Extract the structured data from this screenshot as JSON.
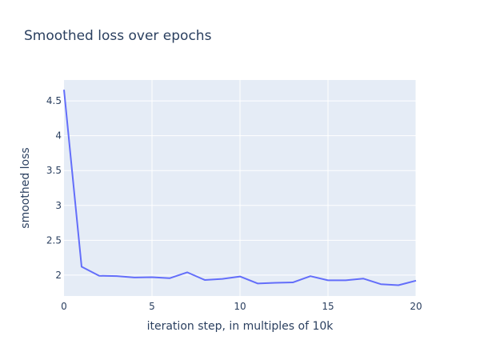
{
  "chart_data": {
    "type": "line",
    "title": "Smoothed loss over epochs",
    "xlabel": "iteration step, in multiples of 10k",
    "ylabel": "smoothed loss",
    "xlim": [
      0,
      20
    ],
    "ylim": [
      1.7,
      4.8
    ],
    "xticks": [
      0,
      5,
      10,
      15,
      20
    ],
    "yticks": [
      2,
      2.5,
      3,
      3.5,
      4,
      4.5
    ],
    "ytick_labels": [
      "2",
      "2.5",
      "3",
      "3.5",
      "4",
      "4.5"
    ],
    "grid": true,
    "series": [
      {
        "x": [
          0,
          1,
          2,
          3,
          4,
          5,
          6,
          7,
          8,
          9,
          10,
          11,
          12,
          13,
          14,
          15,
          16,
          17,
          18,
          19,
          20
        ],
        "values": [
          4.66,
          2.12,
          1.99,
          1.985,
          1.965,
          1.97,
          1.955,
          2.04,
          1.93,
          1.945,
          1.98,
          1.88,
          1.89,
          1.895,
          1.985,
          1.925,
          1.925,
          1.95,
          1.87,
          1.855,
          1.92
        ]
      }
    ]
  },
  "colors": {
    "plot_bg": "#e5ecf6",
    "grid": "#ffffff",
    "line": "#636efa",
    "text": "#2a3f5f"
  }
}
